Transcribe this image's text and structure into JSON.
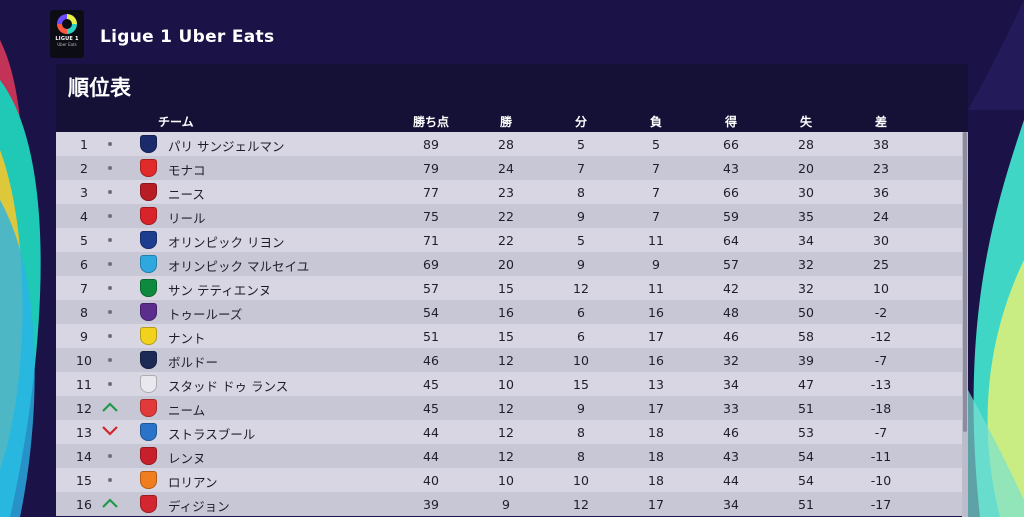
{
  "league": {
    "name": "Ligue 1 Uber Eats",
    "logo_text_top": "LIGUE 1",
    "logo_text_bottom": "Uber Eats"
  },
  "panel": {
    "title": "順位表"
  },
  "columns": {
    "team": "チーム",
    "points": "勝ち点",
    "won": "勝",
    "drawn": "分",
    "lost": "負",
    "gf": "得",
    "ga": "失",
    "gd": "差"
  },
  "colors": {
    "trend_up": "#1f9a4a",
    "trend_down": "#d3242d",
    "header_bg": "#141036",
    "row_light": "#d7d6e2",
    "row_dark": "#c8c7d5"
  },
  "standings": [
    {
      "pos": "1",
      "trend": "none",
      "team": "パリ サンジェルマン",
      "crest_icon": "psg-crest-icon",
      "crest_color": "#1b2a6b",
      "pts": "89",
      "w": "28",
      "d": "5",
      "l": "5",
      "gf": "66",
      "ga": "28",
      "gd": "38"
    },
    {
      "pos": "2",
      "trend": "none",
      "team": "モナコ",
      "crest_icon": "monaco-crest-icon",
      "crest_color": "#e12a2a",
      "pts": "79",
      "w": "24",
      "d": "7",
      "l": "7",
      "gf": "43",
      "ga": "20",
      "gd": "23"
    },
    {
      "pos": "3",
      "trend": "none",
      "team": "ニース",
      "crest_icon": "nice-crest-icon",
      "crest_color": "#b81d24",
      "pts": "77",
      "w": "23",
      "d": "8",
      "l": "7",
      "gf": "66",
      "ga": "30",
      "gd": "36"
    },
    {
      "pos": "4",
      "trend": "none",
      "team": "リール",
      "crest_icon": "lille-crest-icon",
      "crest_color": "#d8232a",
      "pts": "75",
      "w": "22",
      "d": "9",
      "l": "7",
      "gf": "59",
      "ga": "35",
      "gd": "24"
    },
    {
      "pos": "5",
      "trend": "none",
      "team": "オリンピック リヨン",
      "crest_icon": "lyon-crest-icon",
      "crest_color": "#1d3d8f",
      "pts": "71",
      "w": "22",
      "d": "5",
      "l": "11",
      "gf": "64",
      "ga": "34",
      "gd": "30"
    },
    {
      "pos": "6",
      "trend": "none",
      "team": "オリンピック マルセイユ",
      "crest_icon": "marseille-crest-icon",
      "crest_color": "#2fa8e0",
      "pts": "69",
      "w": "20",
      "d": "9",
      "l": "9",
      "gf": "57",
      "ga": "32",
      "gd": "25"
    },
    {
      "pos": "7",
      "trend": "none",
      "team": "サン テティエンヌ",
      "crest_icon": "saint-etienne-crest-icon",
      "crest_color": "#0e8a3e",
      "pts": "57",
      "w": "15",
      "d": "12",
      "l": "11",
      "gf": "42",
      "ga": "32",
      "gd": "10"
    },
    {
      "pos": "8",
      "trend": "none",
      "team": "トゥールーズ",
      "crest_icon": "toulouse-crest-icon",
      "crest_color": "#5b2d8c",
      "pts": "54",
      "w": "16",
      "d": "6",
      "l": "16",
      "gf": "48",
      "ga": "50",
      "gd": "-2"
    },
    {
      "pos": "9",
      "trend": "none",
      "team": "ナント",
      "crest_icon": "nantes-crest-icon",
      "crest_color": "#f2d21c",
      "pts": "51",
      "w": "15",
      "d": "6",
      "l": "17",
      "gf": "46",
      "ga": "58",
      "gd": "-12"
    },
    {
      "pos": "10",
      "trend": "none",
      "team": "ボルドー",
      "crest_icon": "bordeaux-crest-icon",
      "crest_color": "#1d2a55",
      "pts": "46",
      "w": "12",
      "d": "10",
      "l": "16",
      "gf": "32",
      "ga": "39",
      "gd": "-7"
    },
    {
      "pos": "11",
      "trend": "none",
      "team": "スタッド ドゥ ランス",
      "crest_icon": "reims-crest-icon",
      "crest_color": "#e8e8ee",
      "pts": "45",
      "w": "10",
      "d": "15",
      "l": "13",
      "gf": "34",
      "ga": "47",
      "gd": "-13"
    },
    {
      "pos": "12",
      "trend": "up",
      "team": "ニーム",
      "crest_icon": "nimes-crest-icon",
      "crest_color": "#e23a3a",
      "pts": "45",
      "w": "12",
      "d": "9",
      "l": "17",
      "gf": "33",
      "ga": "51",
      "gd": "-18"
    },
    {
      "pos": "13",
      "trend": "down",
      "team": "ストラスブール",
      "crest_icon": "strasbourg-crest-icon",
      "crest_color": "#2a73c9",
      "pts": "44",
      "w": "12",
      "d": "8",
      "l": "18",
      "gf": "46",
      "ga": "53",
      "gd": "-7"
    },
    {
      "pos": "14",
      "trend": "none",
      "team": "レンヌ",
      "crest_icon": "rennes-crest-icon",
      "crest_color": "#c8202b",
      "pts": "44",
      "w": "12",
      "d": "8",
      "l": "18",
      "gf": "43",
      "ga": "54",
      "gd": "-11"
    },
    {
      "pos": "15",
      "trend": "none",
      "team": "ロリアン",
      "crest_icon": "lorient-crest-icon",
      "crest_color": "#f07d1e",
      "pts": "40",
      "w": "10",
      "d": "10",
      "l": "18",
      "gf": "44",
      "ga": "54",
      "gd": "-10"
    },
    {
      "pos": "16",
      "trend": "up",
      "team": "ディジョン",
      "crest_icon": "dijon-crest-icon",
      "crest_color": "#d22630",
      "pts": "39",
      "w": "9",
      "d": "12",
      "l": "17",
      "gf": "34",
      "ga": "51",
      "gd": "-17"
    }
  ]
}
